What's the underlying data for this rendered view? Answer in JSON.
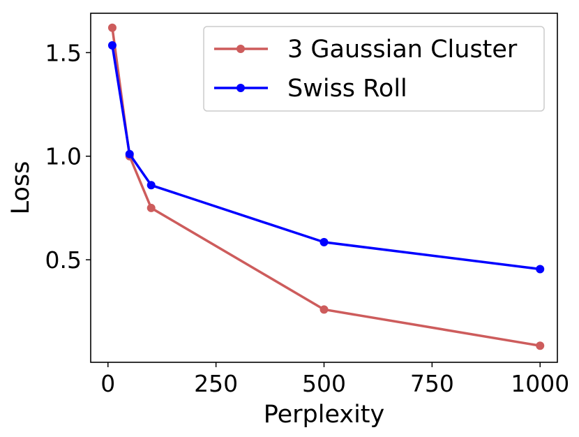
{
  "chart_data": {
    "type": "line",
    "title": "",
    "xlabel": "Perplexity",
    "ylabel": "Loss",
    "xlim": [
      -40,
      1040
    ],
    "ylim": [
      0.005,
      1.69
    ],
    "x_ticks": [
      0,
      250,
      500,
      750,
      1000
    ],
    "x_tick_labels": [
      "0",
      "250",
      "500",
      "750",
      "1000"
    ],
    "y_ticks": [
      0.5,
      1.0,
      1.5
    ],
    "y_tick_labels": [
      "0.5",
      "1.0",
      "1.5"
    ],
    "grid": false,
    "legend_position": "top-right",
    "series": [
      {
        "name": "3 Gaussian Cluster",
        "color": "#cd5c5c",
        "x": [
          10,
          50,
          100,
          500,
          1000
        ],
        "y": [
          1.62,
          1.0,
          0.75,
          0.26,
          0.085
        ]
      },
      {
        "name": "Swiss Roll",
        "color": "#0000ff",
        "x": [
          10,
          50,
          100,
          500,
          1000
        ],
        "y": [
          1.535,
          1.01,
          0.86,
          0.585,
          0.455
        ]
      }
    ]
  }
}
